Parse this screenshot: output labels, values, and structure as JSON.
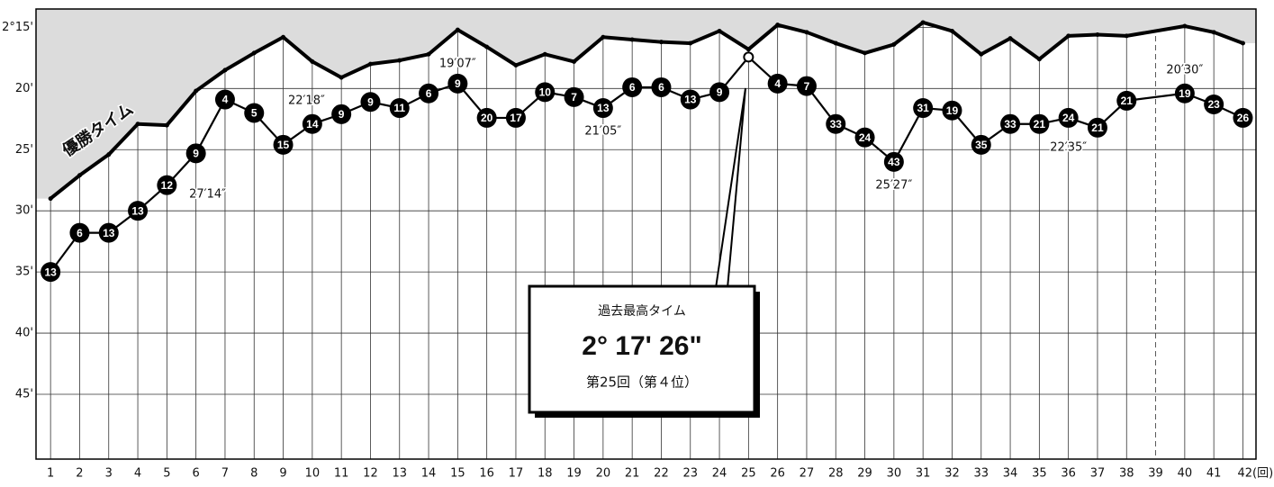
{
  "chart_data": {
    "type": "line",
    "x": [
      1,
      2,
      3,
      4,
      5,
      6,
      7,
      8,
      9,
      10,
      11,
      12,
      13,
      14,
      15,
      16,
      17,
      18,
      19,
      20,
      21,
      22,
      23,
      24,
      25,
      26,
      27,
      28,
      29,
      30,
      31,
      32,
      33,
      34,
      35,
      36,
      37,
      38,
      40,
      41,
      42
    ],
    "xlim": [
      0.5,
      42.45
    ],
    "xticks": [
      1,
      2,
      3,
      4,
      5,
      6,
      7,
      8,
      9,
      10,
      11,
      12,
      13,
      14,
      15,
      16,
      17,
      18,
      19,
      20,
      21,
      22,
      23,
      24,
      25,
      26,
      27,
      28,
      29,
      30,
      31,
      32,
      33,
      34,
      35,
      36,
      37,
      38,
      39,
      40,
      41,
      {
        "value": 42,
        "label": "42(回)"
      }
    ],
    "ylim": [
      50.3,
      13.5
    ],
    "yticks": [
      {
        "value": 15,
        "label": "2°15'"
      },
      {
        "value": 20,
        "label": "20'"
      },
      {
        "value": 25,
        "label": "25'"
      },
      {
        "value": 30,
        "label": "30'"
      },
      {
        "value": 35,
        "label": "35'"
      },
      {
        "value": 40,
        "label": "40'"
      },
      {
        "value": 45,
        "label": "45'"
      }
    ],
    "grid": true,
    "dashed_x": 39,
    "series": [
      {
        "name": "優勝タイム",
        "color": "#000000",
        "fill": "#dcdcdc",
        "values": [
          29.0,
          27.1,
          25.4,
          22.9,
          23.0,
          20.2,
          18.5,
          17.1,
          15.8,
          17.8,
          19.1,
          18.0,
          17.7,
          17.2,
          15.2,
          16.6,
          18.1,
          17.2,
          17.8,
          15.8,
          16.0,
          16.2,
          16.3,
          15.3,
          16.8,
          14.8,
          15.4,
          16.3,
          17.1,
          16.4,
          14.6,
          15.3,
          17.2,
          15.9,
          17.6,
          15.7,
          15.6,
          15.7,
          14.9,
          15.4,
          16.3
        ]
      },
      {
        "color": "#000000",
        "values": [
          35.0,
          31.8,
          31.8,
          30.0,
          27.9,
          25.3,
          20.9,
          22.0,
          24.6,
          22.9,
          22.1,
          21.1,
          21.6,
          20.4,
          19.6,
          22.4,
          22.4,
          20.3,
          20.7,
          21.6,
          19.9,
          19.9,
          20.9,
          20.3,
          17.43,
          19.6,
          19.8,
          22.9,
          24.0,
          26.0,
          21.6,
          21.8,
          24.6,
          22.9,
          22.9,
          22.4,
          23.2,
          21.0,
          20.4,
          21.3,
          22.4
        ],
        "ranks": [
          13,
          6,
          13,
          13,
          12,
          9,
          4,
          5,
          15,
          14,
          9,
          9,
          11,
          6,
          9,
          20,
          17,
          10,
          7,
          13,
          6,
          6,
          13,
          9,
          null,
          4,
          7,
          33,
          24,
          43,
          31,
          19,
          35,
          33,
          21,
          24,
          21,
          21,
          19,
          23,
          26
        ]
      }
    ],
    "annotations": [
      "27′14″",
      "22′18″",
      "19′07″",
      "21′05″",
      "25′27″",
      "22′35″",
      "20′30″"
    ],
    "callout": {
      "heading": "過去最高タイム",
      "time": "2° 17' 26\"",
      "note": "第25回（第４位）"
    }
  }
}
